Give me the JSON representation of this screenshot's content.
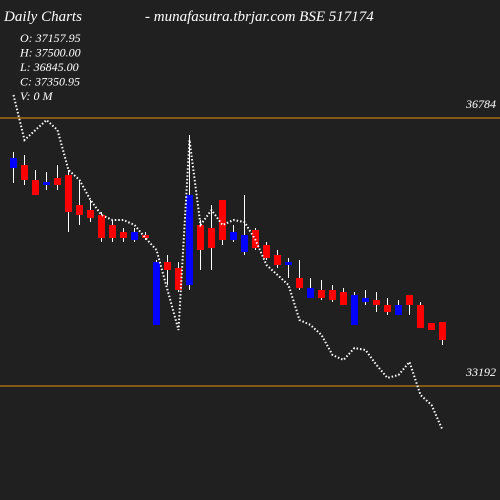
{
  "chart_data": {
    "type": "candlestick",
    "title": "Daily Charts",
    "subtitle": "-  munafasutra.tbrjar.com BSE 517174",
    "ohlc_labels": [
      "O: 37157.95",
      "H: 37500.00",
      "L: 36845.00",
      "C: 37350.95",
      "V: 0  M"
    ],
    "ylim": [
      31664,
      38366
    ],
    "levels": [
      36784,
      33192
    ],
    "level_color": "#e8900a",
    "up_color": "#0000ff",
    "down_color": "#ff0000",
    "wick_color": "#ffffff",
    "line_color": "#ffffff",
    "open": [
      36114,
      36154,
      35953,
      35886,
      35980,
      36020,
      35618,
      35551,
      35484,
      35350,
      35256,
      35149,
      35216,
      34010,
      34854,
      34774,
      34546,
      35350,
      35310,
      35685,
      35149,
      34988,
      35283,
      35082,
      34948,
      34814,
      34640,
      34372,
      34479,
      34479,
      34452,
      34010,
      34318,
      34345,
      34278,
      34144,
      34412,
      34278,
      34036,
      34050
    ],
    "high": [
      36328,
      36288,
      36087,
      36060,
      36154,
      36087,
      35953,
      35685,
      35524,
      35417,
      35310,
      35310,
      35256,
      34881,
      34948,
      34854,
      36556,
      35417,
      35618,
      35685,
      35350,
      35752,
      35310,
      35122,
      35015,
      34908,
      34881,
      34640,
      34613,
      34546,
      34506,
      34452,
      34479,
      34452,
      34372,
      34345,
      34412,
      34318,
      34036,
      34050
    ],
    "low": [
      35913,
      35886,
      35752,
      35819,
      35819,
      35256,
      35350,
      35390,
      35122,
      35122,
      35122,
      35122,
      35149,
      34010,
      34546,
      34452,
      34479,
      34747,
      34747,
      35082,
      35122,
      34948,
      35015,
      34881,
      34774,
      34640,
      34479,
      34372,
      34345,
      34318,
      34278,
      34010,
      34278,
      34184,
      34144,
      34144,
      34144,
      33969,
      33943,
      33742
    ],
    "close": [
      36248,
      35953,
      35752,
      35926,
      35886,
      35524,
      35484,
      35444,
      35176,
      35176,
      35176,
      35256,
      35176,
      34854,
      34747,
      34479,
      35752,
      35015,
      35042,
      35149,
      35256,
      35216,
      35042,
      34908,
      34814,
      34854,
      34506,
      34506,
      34372,
      34345,
      34278,
      34412,
      34372,
      34278,
      34184,
      34278,
      34278,
      33969,
      33943,
      33809
    ],
    "moving_average": [
      37092,
      36489,
      36623,
      36757,
      36623,
      36087,
      35953,
      35685,
      35484,
      35417,
      35417,
      35350,
      35176,
      35015,
      34479,
      33943,
      36489,
      35350,
      35551,
      35350,
      35417,
      35390,
      35149,
      34814,
      34680,
      34546,
      34077,
      34010,
      33876,
      33608,
      33541,
      33702,
      33675,
      33474,
      33300,
      33340,
      33514,
      33072,
      32938,
      32603
    ]
  }
}
